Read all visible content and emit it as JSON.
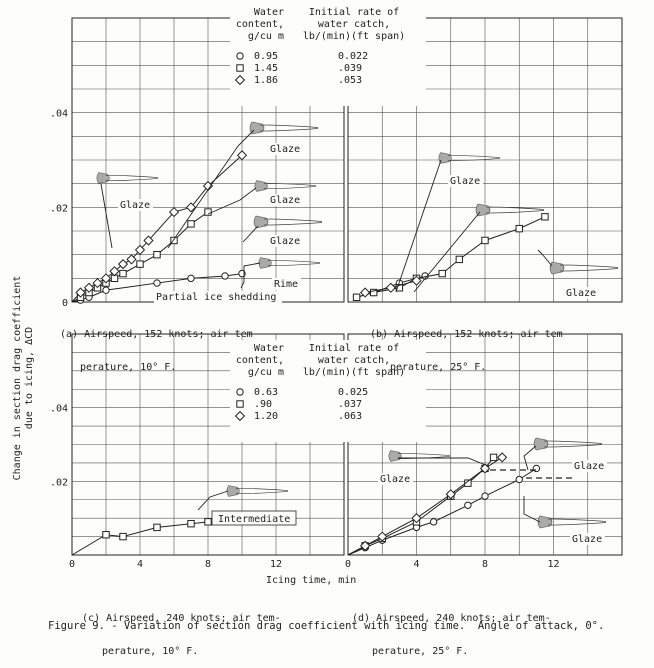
{
  "figure": {
    "caption": "Figure 9. - Variation of section drag coefficient with icing time.  Angle of attack, 0°.",
    "ylabel_line1": "Change in section drag coefficient",
    "ylabel_line2": "due to icing, ΔCD",
    "xlabel": "Icing time, min"
  },
  "legend_top": {
    "col1_header": [
      "Water",
      "content,",
      "g/cu m"
    ],
    "col2_header": [
      "Initial rate of",
      "water catch,",
      "lb/(min)(ft span)"
    ],
    "rows": [
      {
        "marker": "circle",
        "content": "0.95",
        "rate": "0.022"
      },
      {
        "marker": "square",
        "content": "1.45",
        "rate": ".039"
      },
      {
        "marker": "diamond",
        "content": "1.86",
        "rate": ".053"
      }
    ]
  },
  "legend_bottom": {
    "col1_header": [
      "Water",
      "content,",
      "g/cu m"
    ],
    "col2_header": [
      "Initial rate of",
      "water catch,",
      "lb/(min)(ft span)"
    ],
    "rows": [
      {
        "marker": "circle",
        "content": "0.63",
        "rate": "0.025"
      },
      {
        "marker": "square",
        "content": ".90",
        "rate": ".037"
      },
      {
        "marker": "diamond",
        "content": "1.20",
        "rate": ".063"
      }
    ]
  },
  "chart_data": [
    {
      "panel": "a",
      "type": "line",
      "subcaption": [
        "(a) Airspeed, 152 knots; air tem-",
        "perature, 10° F."
      ],
      "xlim": [
        0,
        16
      ],
      "ylim": [
        0,
        0.06
      ],
      "yticks": [
        0,
        0.02,
        0.04
      ],
      "ytick_labels": [
        "0",
        ".02",
        ".04"
      ],
      "grid": true,
      "series": [
        {
          "marker": "circle",
          "x": [
            0,
            0.5,
            1,
            2,
            5,
            7,
            9,
            10
          ],
          "y": [
            0,
            0.0004,
            0.001,
            0.0025,
            0.004,
            0.005,
            0.0055,
            0.006
          ]
        },
        {
          "marker": "square",
          "x": [
            0,
            0.5,
            1,
            1.5,
            2,
            2.5,
            3,
            4,
            5,
            6,
            7,
            8
          ],
          "y": [
            0,
            0.001,
            0.002,
            0.003,
            0.004,
            0.005,
            0.006,
            0.008,
            0.01,
            0.013,
            0.0165,
            0.019
          ]
        },
        {
          "marker": "diamond",
          "x": [
            0,
            0.5,
            1,
            1.5,
            2,
            2.5,
            3,
            3.5,
            4,
            4.5,
            6,
            7,
            8,
            10
          ],
          "y": [
            0,
            0.002,
            0.003,
            0.004,
            0.005,
            0.0065,
            0.008,
            0.009,
            0.011,
            0.013,
            0.019,
            0.02,
            0.0245,
            0.031
          ]
        }
      ],
      "annotations": [
        "Glaze",
        "Glaze",
        "Glaze",
        "Glaze",
        "Rime",
        "Partial ice shedding"
      ]
    },
    {
      "panel": "b",
      "type": "line",
      "subcaption": [
        "(b) Airspeed, 152 knots; air tem-",
        "perature, 25° F."
      ],
      "xlim": [
        0,
        16
      ],
      "ylim": [
        0,
        0.06
      ],
      "grid": true,
      "series": [
        {
          "marker": "circle",
          "x": [
            0.5,
            1.5,
            3,
            4.5
          ],
          "y": [
            0.001,
            0.002,
            0.004,
            0.0055
          ]
        },
        {
          "marker": "square",
          "x": [
            0.5,
            1.5,
            3,
            4,
            5.5,
            6.5,
            8,
            10,
            11.5
          ],
          "y": [
            0.001,
            0.002,
            0.003,
            0.005,
            0.006,
            0.009,
            0.013,
            0.0155,
            0.018
          ]
        },
        {
          "marker": "diamond",
          "x": [
            1,
            2.5,
            4
          ],
          "y": [
            0.002,
            0.003,
            0.0045
          ]
        }
      ],
      "annotations": [
        "Glaze",
        "Glaze",
        "Glaze"
      ]
    },
    {
      "panel": "c",
      "type": "line",
      "subcaption": [
        "(c) Airspeed, 240 knots; air tem-",
        "perature, 10° F."
      ],
      "xlim": [
        0,
        16
      ],
      "ylim": [
        0,
        0.06
      ],
      "xticks": [
        0,
        4,
        8,
        12
      ],
      "xtick_labels": [
        "0",
        "4",
        "8",
        "12"
      ],
      "yticks": [
        0.02,
        0.04
      ],
      "ytick_labels": [
        ".02",
        ".04"
      ],
      "grid": true,
      "series": [
        {
          "marker": "square",
          "x": [
            0,
            2,
            3,
            5,
            7,
            8
          ],
          "y": [
            0,
            0.0055,
            0.005,
            0.0075,
            0.0085,
            0.009
          ]
        }
      ],
      "annotations": [
        "Intermediate"
      ]
    },
    {
      "panel": "d",
      "type": "line",
      "subcaption": [
        "(d) Airspeed, 240 knots; air tem-",
        "perature, 25° F."
      ],
      "xlim": [
        0,
        16
      ],
      "ylim": [
        0,
        0.06
      ],
      "xticks": [
        0,
        4,
        8,
        12
      ],
      "xtick_labels": [
        "0",
        "4",
        "8",
        "12"
      ],
      "grid": true,
      "series": [
        {
          "marker": "circle",
          "x": [
            0,
            1,
            2,
            4,
            5,
            7,
            8,
            10,
            11
          ],
          "y": [
            0,
            0.002,
            0.004,
            0.0075,
            0.009,
            0.0135,
            0.016,
            0.0205,
            0.0235
          ]
        },
        {
          "marker": "square",
          "x": [
            0,
            1,
            2,
            4,
            6,
            7,
            8,
            8.5
          ],
          "y": [
            0,
            0.0025,
            0.0045,
            0.009,
            0.016,
            0.0195,
            0.0235,
            0.0265
          ]
        },
        {
          "marker": "diamond",
          "x": [
            0,
            1,
            2,
            4,
            6,
            8,
            9
          ],
          "y": [
            0,
            0.0025,
            0.005,
            0.01,
            0.0165,
            0.0235,
            0.0265
          ]
        }
      ],
      "annotations": [
        "Glaze",
        "Glaze",
        "Glaze"
      ]
    }
  ]
}
